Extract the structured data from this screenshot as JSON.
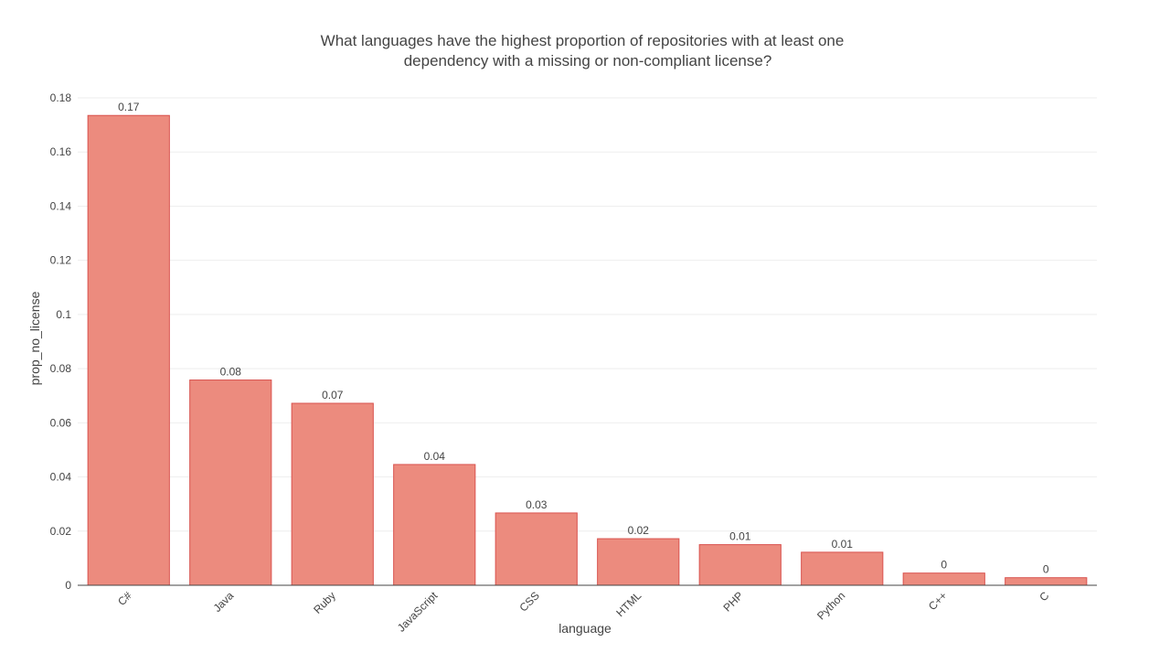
{
  "chart_data": {
    "type": "bar",
    "title_lines": [
      "What languages have the highest proportion of repositories with at least one",
      "dependency with a missing or non-compliant license?"
    ],
    "xlabel": "language",
    "ylabel": "prop_no_license",
    "ylim": [
      0,
      0.18
    ],
    "yticks": [
      0,
      0.02,
      0.04,
      0.06,
      0.08,
      0.1,
      0.12,
      0.14,
      0.16,
      0.18
    ],
    "ytick_labels": [
      "0",
      "0.02",
      "0.04",
      "0.06",
      "0.08",
      "0.1",
      "0.12",
      "0.14",
      "0.16",
      "0.18"
    ],
    "categories": [
      "C#",
      "Java",
      "Ruby",
      "JavaScript",
      "CSS",
      "HTML",
      "PHP",
      "Python",
      "C++",
      "C"
    ],
    "values": [
      0.1735,
      0.0758,
      0.0672,
      0.0446,
      0.0267,
      0.0172,
      0.015,
      0.0122,
      0.0045,
      0.0028
    ],
    "data_labels": [
      "0.17",
      "0.08",
      "0.07",
      "0.04",
      "0.03",
      "0.02",
      "0.01",
      "0.01",
      "0",
      "0"
    ],
    "grid": true,
    "legend": "none",
    "colors": {
      "bar_fill": "#ec8b7e",
      "bar_stroke": "#d9534f",
      "text": "#444444",
      "grid": "#eeeeee"
    }
  }
}
